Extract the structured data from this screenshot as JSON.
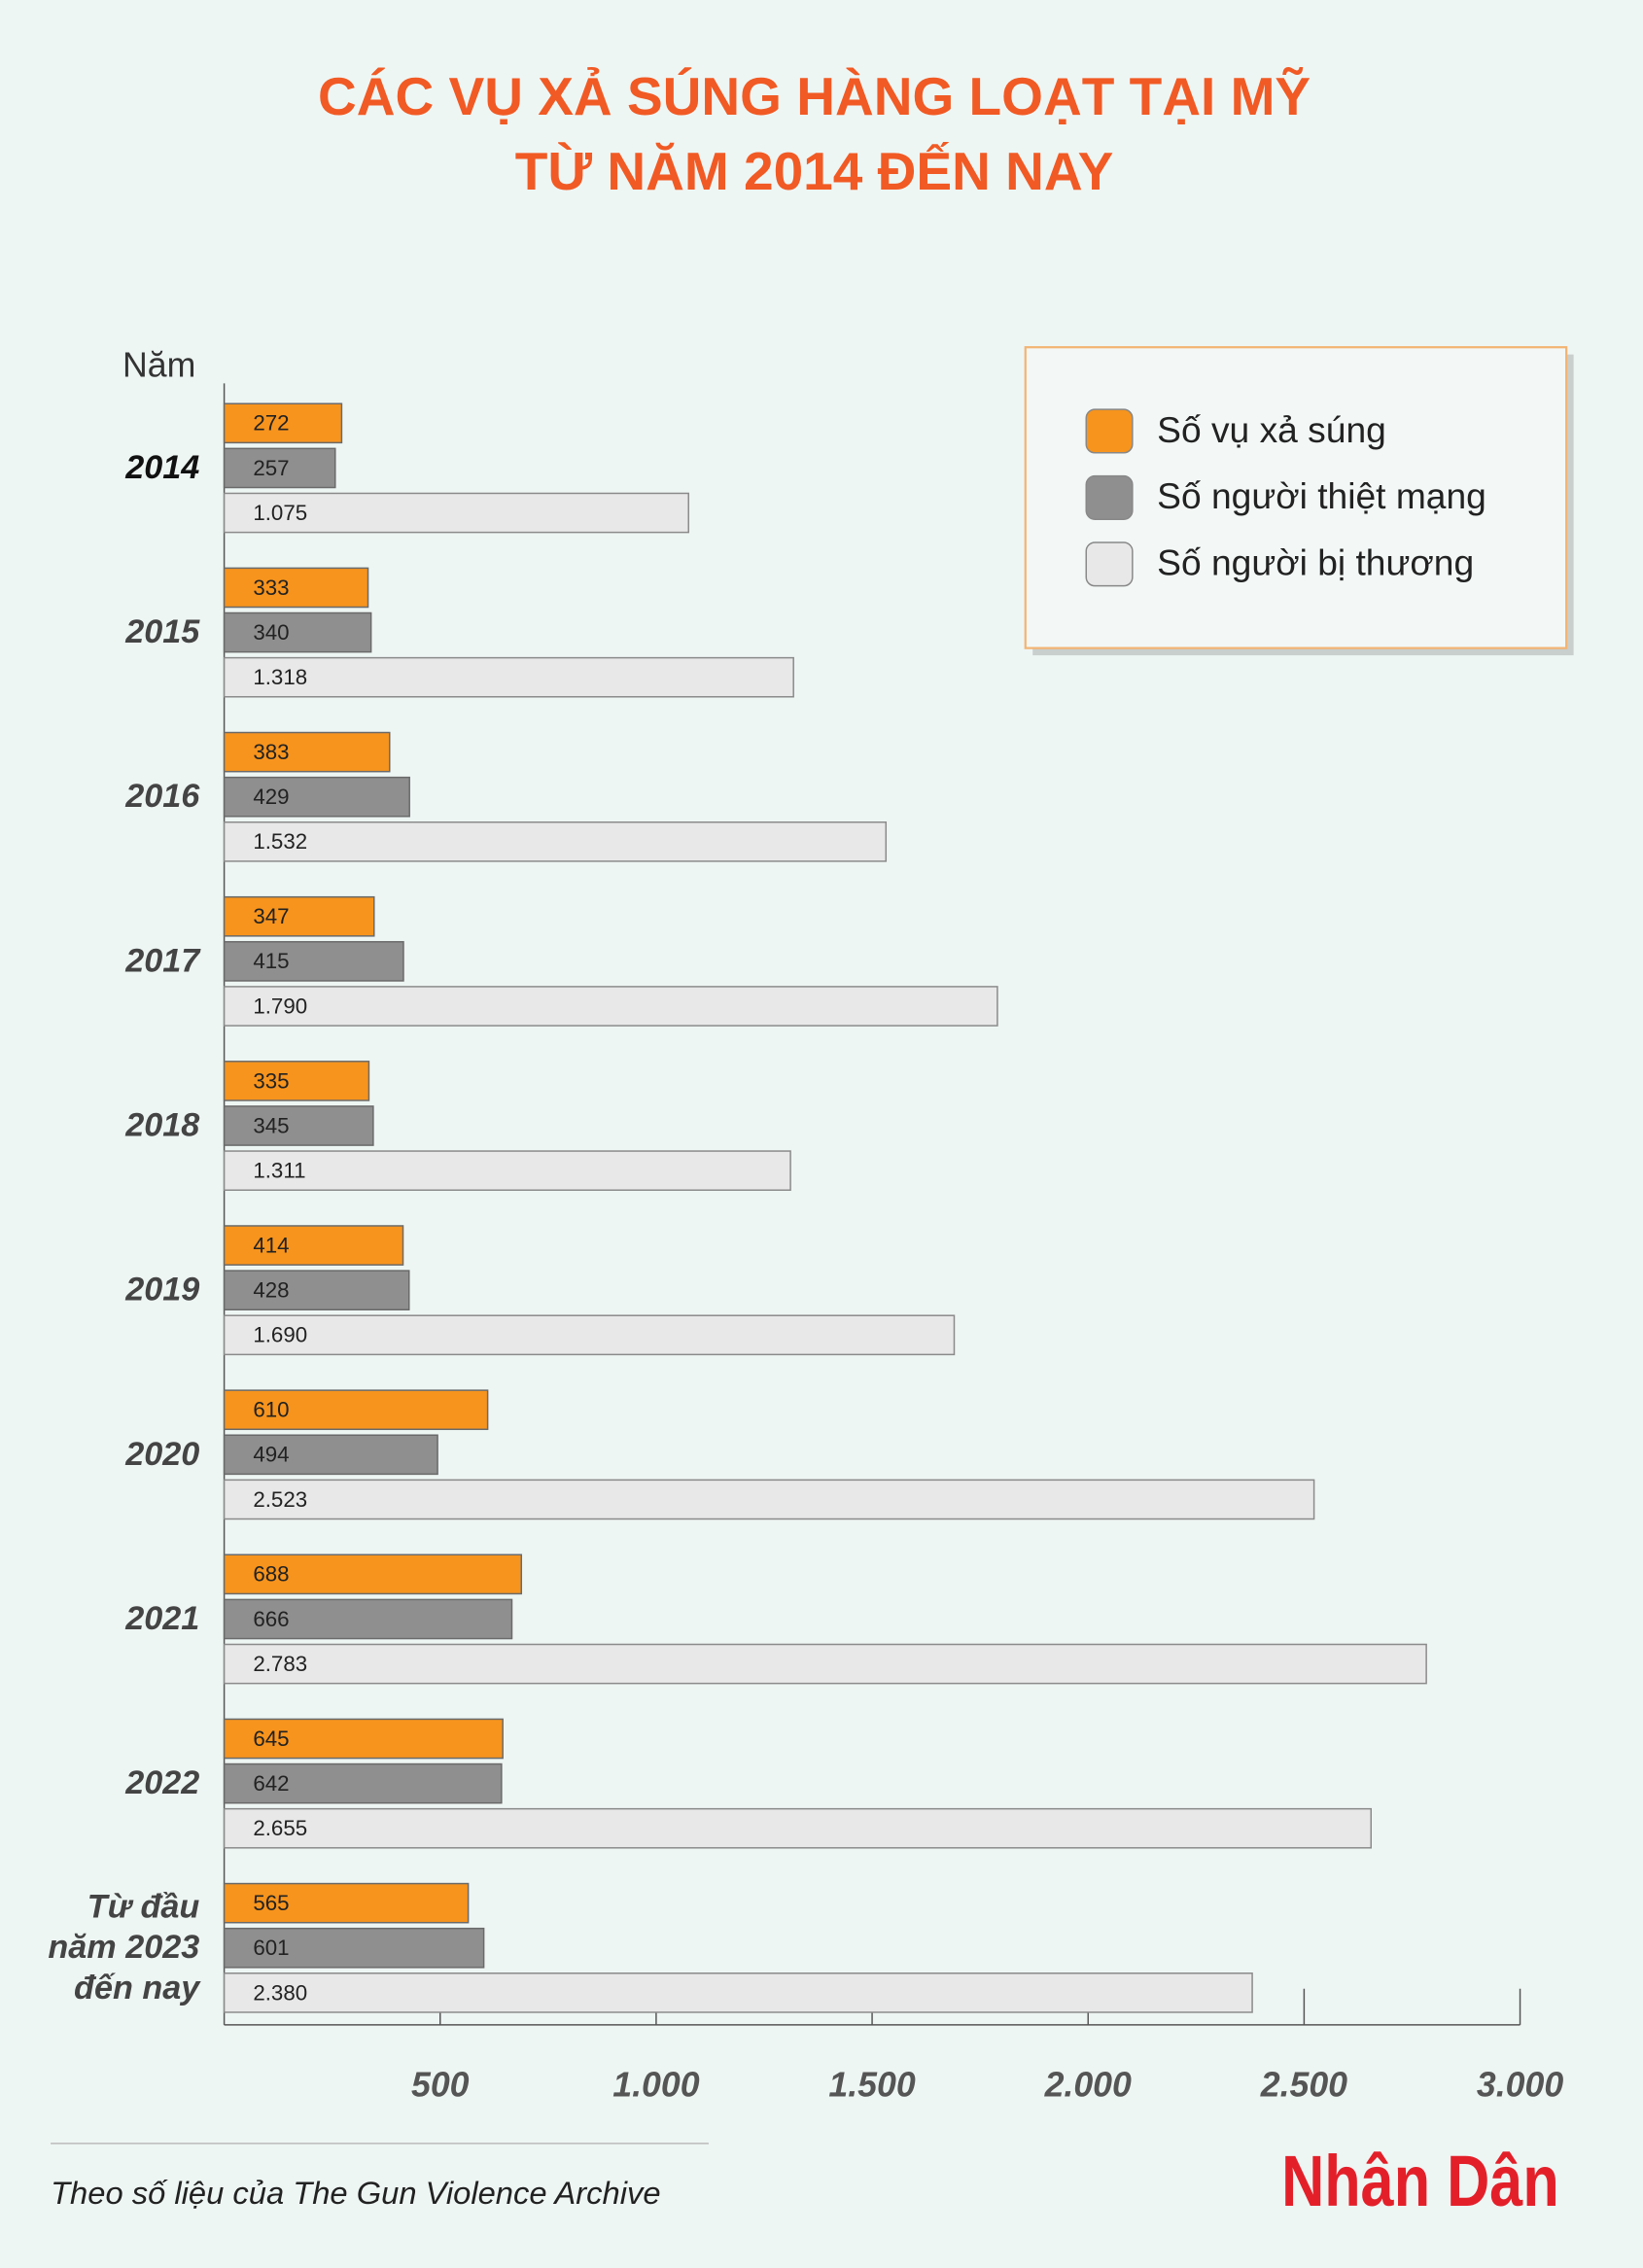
{
  "chart_data": {
    "type": "bar",
    "orientation": "horizontal",
    "title": "CÁC VỤ XẢ SÚNG HÀNG LOẠT TẠI MỸ\nTỪ NĂM 2014 ĐẾN NAY",
    "y_label": "Năm",
    "categories": [
      "2014",
      "2015",
      "2016",
      "2017",
      "2018",
      "2019",
      "2020",
      "2021",
      "2022",
      "Từ đầu\nnăm 2023\nđến nay"
    ],
    "series": [
      {
        "name": "Số vụ xả súng",
        "color": "#f7941d",
        "values": [
          272,
          333,
          383,
          347,
          335,
          414,
          610,
          688,
          645,
          565
        ]
      },
      {
        "name": "Số người thiệt mạng",
        "color": "#8f8f8f",
        "values": [
          257,
          340,
          429,
          415,
          345,
          428,
          494,
          666,
          642,
          601
        ]
      },
      {
        "name": "Số người bị thương",
        "color": "#e8e8e8",
        "values": [
          1075,
          1318,
          1532,
          1790,
          1311,
          1690,
          2523,
          2783,
          2655,
          2380
        ],
        "value_labels": [
          "1.075",
          "1.318",
          "1.532",
          "1.790",
          "1.311",
          "1.690",
          "2.523",
          "2.783",
          "2.655",
          "2.380"
        ]
      }
    ],
    "xlim": [
      0,
      3000
    ],
    "xticks": [
      500,
      {
        "value": 1000,
        "label": "1.000"
      },
      {
        "value": 1500,
        "label": "1.500"
      },
      {
        "value": 2000,
        "label": "2.000"
      },
      {
        "value": 2500,
        "label": "2.500"
      },
      {
        "value": 3000,
        "label": "3.000"
      }
    ],
    "legend": "top-right",
    "source": "Theo số liệu của The Gun Violence Archive",
    "logo": "Nhân Dân"
  }
}
